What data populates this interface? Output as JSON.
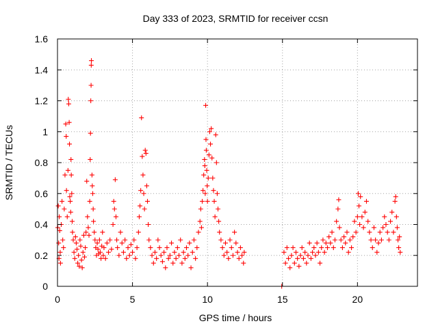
{
  "chart_data": {
    "type": "scatter",
    "title": "Day 333 of 2023, SRMTID for receiver ccsn",
    "xlabel": "GPS time / hours",
    "ylabel": "SRMTID / TECUs",
    "xlim": [
      0,
      24
    ],
    "ylim": [
      0,
      1.6
    ],
    "x_ticks": [
      0,
      5,
      10,
      15,
      20
    ],
    "y_ticks": [
      0,
      0.2,
      0.4,
      0.6,
      0.8,
      1,
      1.2,
      1.4,
      1.6
    ],
    "x_tick_labels": [
      "0",
      "5",
      "10",
      "15",
      "20"
    ],
    "y_tick_labels": [
      "0",
      "0.2",
      "0.4",
      "0.6",
      "0.8",
      "1",
      "1.2",
      "1.4",
      "1.6"
    ],
    "grid": true,
    "marker": "+",
    "color": "#ff0000",
    "series": [
      {
        "name": "SRMTID",
        "points": [
          [
            0.02,
            0.38
          ],
          [
            0.05,
            0.52
          ],
          [
            0.08,
            0.28
          ],
          [
            0.1,
            0.18
          ],
          [
            0.12,
            0.45
          ],
          [
            0.15,
            0.36
          ],
          [
            0.18,
            0.22
          ],
          [
            0.2,
            0.15
          ],
          [
            0.25,
            0.4
          ],
          [
            0.3,
            0.55
          ],
          [
            0.35,
            0.3
          ],
          [
            0.4,
            0.25
          ],
          [
            0.45,
            0.5
          ],
          [
            0.5,
            0.72
          ],
          [
            0.55,
            1.05
          ],
          [
            0.58,
            0.97
          ],
          [
            0.6,
            0.62
          ],
          [
            0.65,
            0.45
          ],
          [
            0.7,
            0.75
          ],
          [
            0.72,
            1.21
          ],
          [
            0.75,
            1.18
          ],
          [
            0.78,
            1.06
          ],
          [
            0.8,
            0.92
          ],
          [
            0.82,
            0.58
          ],
          [
            0.85,
            0.55
          ],
          [
            0.88,
            0.48
          ],
          [
            0.9,
            0.82
          ],
          [
            0.92,
            0.72
          ],
          [
            0.95,
            0.6
          ],
          [
            0.98,
            0.42
          ],
          [
            1.0,
            0.35
          ],
          [
            1.05,
            0.3
          ],
          [
            1.1,
            0.22
          ],
          [
            1.15,
            0.18
          ],
          [
            1.2,
            0.32
          ],
          [
            1.25,
            0.28
          ],
          [
            1.3,
            0.24
          ],
          [
            1.35,
            0.15
          ],
          [
            1.4,
            0.2
          ],
          [
            1.45,
            0.13
          ],
          [
            1.5,
            0.3
          ],
          [
            1.55,
            0.26
          ],
          [
            1.6,
            0.17
          ],
          [
            1.65,
            0.12
          ],
          [
            1.7,
            0.22
          ],
          [
            1.75,
            0.33
          ],
          [
            1.8,
            0.19
          ],
          [
            1.85,
            0.25
          ],
          [
            1.9,
            0.35
          ],
          [
            1.95,
            0.68
          ],
          [
            2.0,
            0.45
          ],
          [
            2.05,
            0.38
          ],
          [
            2.1,
            0.33
          ],
          [
            2.15,
            0.55
          ],
          [
            2.18,
            0.82
          ],
          [
            2.2,
            0.99
          ],
          [
            2.22,
            1.2
          ],
          [
            2.24,
            1.3
          ],
          [
            2.25,
            1.43
          ],
          [
            2.26,
            1.46
          ],
          [
            2.3,
            0.72
          ],
          [
            2.32,
            0.65
          ],
          [
            2.35,
            0.6
          ],
          [
            2.38,
            0.5
          ],
          [
            2.4,
            0.42
          ],
          [
            2.45,
            0.35
          ],
          [
            2.5,
            0.3
          ],
          [
            2.55,
            0.25
          ],
          [
            2.6,
            0.2
          ],
          [
            2.65,
            0.28
          ],
          [
            2.7,
            0.24
          ],
          [
            2.75,
            0.21
          ],
          [
            2.8,
            0.3
          ],
          [
            2.85,
            0.22
          ],
          [
            2.9,
            0.18
          ],
          [
            2.95,
            0.26
          ],
          [
            3.0,
            0.35
          ],
          [
            3.05,
            0.2
          ],
          [
            3.1,
            0.25
          ],
          [
            3.2,
            0.18
          ],
          [
            3.3,
            0.28
          ],
          [
            3.4,
            0.22
          ],
          [
            3.5,
            0.3
          ],
          [
            3.6,
            0.24
          ],
          [
            3.7,
            0.4
          ],
          [
            3.75,
            0.55
          ],
          [
            3.8,
            0.5
          ],
          [
            3.85,
            0.69
          ],
          [
            3.9,
            0.45
          ],
          [
            3.95,
            0.3
          ],
          [
            4.0,
            0.25
          ],
          [
            4.1,
            0.2
          ],
          [
            4.2,
            0.35
          ],
          [
            4.3,
            0.28
          ],
          [
            4.4,
            0.22
          ],
          [
            4.5,
            0.3
          ],
          [
            4.6,
            0.18
          ],
          [
            4.7,
            0.25
          ],
          [
            4.8,
            0.2
          ],
          [
            4.9,
            0.27
          ],
          [
            5.0,
            0.22
          ],
          [
            5.1,
            0.3
          ],
          [
            5.2,
            0.18
          ],
          [
            5.3,
            0.25
          ],
          [
            5.4,
            0.35
          ],
          [
            5.45,
            0.45
          ],
          [
            5.5,
            0.52
          ],
          [
            5.55,
            0.62
          ],
          [
            5.6,
            1.09
          ],
          [
            5.65,
            0.84
          ],
          [
            5.7,
            0.72
          ],
          [
            5.75,
            0.6
          ],
          [
            5.8,
            0.5
          ],
          [
            5.85,
            0.88
          ],
          [
            5.9,
            0.86
          ],
          [
            5.95,
            0.65
          ],
          [
            6.0,
            0.55
          ],
          [
            6.05,
            0.4
          ],
          [
            6.1,
            0.3
          ],
          [
            6.2,
            0.25
          ],
          [
            6.3,
            0.2
          ],
          [
            6.4,
            0.15
          ],
          [
            6.5,
            0.22
          ],
          [
            6.6,
            0.18
          ],
          [
            6.7,
            0.3
          ],
          [
            6.8,
            0.25
          ],
          [
            6.9,
            0.2
          ],
          [
            7.0,
            0.16
          ],
          [
            7.1,
            0.22
          ],
          [
            7.2,
            0.12
          ],
          [
            7.3,
            0.25
          ],
          [
            7.4,
            0.18
          ],
          [
            7.5,
            0.2
          ],
          [
            7.6,
            0.28
          ],
          [
            7.7,
            0.15
          ],
          [
            7.8,
            0.22
          ],
          [
            7.9,
            0.18
          ],
          [
            8.0,
            0.25
          ],
          [
            8.1,
            0.2
          ],
          [
            8.2,
            0.3
          ],
          [
            8.3,
            0.15
          ],
          [
            8.4,
            0.22
          ],
          [
            8.5,
            0.18
          ],
          [
            8.6,
            0.25
          ],
          [
            8.7,
            0.2
          ],
          [
            8.8,
            0.28
          ],
          [
            8.9,
            0.12
          ],
          [
            9.0,
            0.22
          ],
          [
            9.1,
            0.3
          ],
          [
            9.2,
            0.18
          ],
          [
            9.3,
            0.25
          ],
          [
            9.4,
            0.35
          ],
          [
            9.5,
            0.42
          ],
          [
            9.55,
            0.5
          ],
          [
            9.6,
            0.38
          ],
          [
            9.65,
            0.55
          ],
          [
            9.7,
            0.62
          ],
          [
            9.75,
            0.72
          ],
          [
            9.8,
            0.82
          ],
          [
            9.82,
            0.78
          ],
          [
            9.85,
            0.6
          ],
          [
            9.88,
            1.17
          ],
          [
            9.9,
            0.95
          ],
          [
            9.92,
            0.88
          ],
          [
            9.95,
            0.75
          ],
          [
            9.98,
            0.65
          ],
          [
            10.0,
            0.55
          ],
          [
            10.05,
            0.7
          ],
          [
            10.1,
            0.85
          ],
          [
            10.15,
            1.0
          ],
          [
            10.2,
            0.92
          ],
          [
            10.25,
            1.02
          ],
          [
            10.3,
            0.83
          ],
          [
            10.35,
            0.7
          ],
          [
            10.4,
            0.62
          ],
          [
            10.45,
            0.55
          ],
          [
            10.5,
            0.45
          ],
          [
            10.55,
            0.98
          ],
          [
            10.6,
            0.8
          ],
          [
            10.65,
            0.6
          ],
          [
            10.7,
            0.5
          ],
          [
            10.75,
            0.42
          ],
          [
            10.8,
            0.35
          ],
          [
            10.9,
            0.3
          ],
          [
            11.0,
            0.25
          ],
          [
            11.1,
            0.2
          ],
          [
            11.2,
            0.28
          ],
          [
            11.3,
            0.22
          ],
          [
            11.4,
            0.18
          ],
          [
            11.5,
            0.3
          ],
          [
            11.6,
            0.25
          ],
          [
            11.7,
            0.2
          ],
          [
            11.8,
            0.35
          ],
          [
            11.9,
            0.28
          ],
          [
            12.0,
            0.22
          ],
          [
            12.1,
            0.18
          ],
          [
            12.2,
            0.25
          ],
          [
            12.3,
            0.2
          ],
          [
            12.4,
            0.15
          ],
          [
            12.45,
            0.22
          ],
          [
            14.95,
            0.0
          ],
          [
            15.1,
            0.22
          ],
          [
            15.2,
            0.15
          ],
          [
            15.3,
            0.25
          ],
          [
            15.4,
            0.18
          ],
          [
            15.5,
            0.12
          ],
          [
            15.6,
            0.2
          ],
          [
            15.7,
            0.25
          ],
          [
            15.8,
            0.15
          ],
          [
            15.9,
            0.22
          ],
          [
            16.0,
            0.18
          ],
          [
            16.1,
            0.13
          ],
          [
            16.2,
            0.2
          ],
          [
            16.3,
            0.25
          ],
          [
            16.4,
            0.18
          ],
          [
            16.5,
            0.22
          ],
          [
            16.6,
            0.15
          ],
          [
            16.7,
            0.2
          ],
          [
            16.8,
            0.28
          ],
          [
            16.9,
            0.18
          ],
          [
            17.0,
            0.22
          ],
          [
            17.1,
            0.25
          ],
          [
            17.2,
            0.2
          ],
          [
            17.3,
            0.28
          ],
          [
            17.4,
            0.22
          ],
          [
            17.5,
            0.15
          ],
          [
            17.6,
            0.25
          ],
          [
            17.7,
            0.3
          ],
          [
            17.8,
            0.22
          ],
          [
            17.9,
            0.28
          ],
          [
            18.0,
            0.25
          ],
          [
            18.1,
            0.32
          ],
          [
            18.2,
            0.28
          ],
          [
            18.3,
            0.35
          ],
          [
            18.4,
            0.25
          ],
          [
            18.5,
            0.3
          ],
          [
            18.6,
            0.42
          ],
          [
            18.7,
            0.5
          ],
          [
            18.75,
            0.56
          ],
          [
            18.8,
            0.38
          ],
          [
            18.9,
            0.3
          ],
          [
            19.0,
            0.25
          ],
          [
            19.1,
            0.32
          ],
          [
            19.2,
            0.28
          ],
          [
            19.3,
            0.35
          ],
          [
            19.4,
            0.22
          ],
          [
            19.5,
            0.3
          ],
          [
            19.6,
            0.25
          ],
          [
            19.7,
            0.32
          ],
          [
            19.8,
            0.42
          ],
          [
            19.9,
            0.35
          ],
          [
            20.0,
            0.45
          ],
          [
            20.05,
            0.6
          ],
          [
            20.1,
            0.52
          ],
          [
            20.15,
            0.4
          ],
          [
            20.2,
            0.58
          ],
          [
            20.3,
            0.45
          ],
          [
            20.4,
            0.38
          ],
          [
            20.5,
            0.48
          ],
          [
            20.6,
            0.55
          ],
          [
            20.7,
            0.42
          ],
          [
            20.8,
            0.35
          ],
          [
            20.9,
            0.3
          ],
          [
            21.0,
            0.25
          ],
          [
            21.1,
            0.38
          ],
          [
            21.2,
            0.3
          ],
          [
            21.3,
            0.22
          ],
          [
            21.4,
            0.28
          ],
          [
            21.5,
            0.35
          ],
          [
            21.6,
            0.3
          ],
          [
            21.7,
            0.38
          ],
          [
            21.8,
            0.45
          ],
          [
            21.9,
            0.4
          ],
          [
            22.0,
            0.35
          ],
          [
            22.1,
            0.3
          ],
          [
            22.2,
            0.42
          ],
          [
            22.3,
            0.48
          ],
          [
            22.4,
            0.35
          ],
          [
            22.5,
            0.55
          ],
          [
            22.55,
            0.58
          ],
          [
            22.6,
            0.45
          ],
          [
            22.65,
            0.38
          ],
          [
            22.7,
            0.3
          ],
          [
            22.75,
            0.25
          ],
          [
            22.8,
            0.32
          ],
          [
            22.85,
            0.22
          ]
        ]
      }
    ]
  }
}
